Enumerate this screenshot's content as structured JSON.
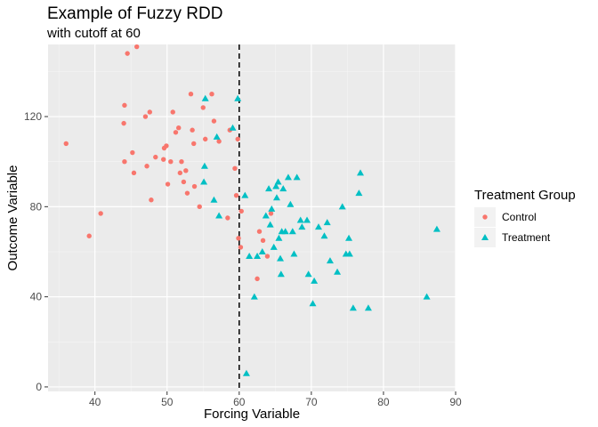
{
  "chart_data": {
    "type": "scatter",
    "title": "Example of Fuzzy RDD",
    "subtitle": "with cutoff at 60",
    "xlabel": "Forcing Variable",
    "ylabel": "Outcome Variable",
    "xlim": [
      33.5,
      90
    ],
    "ylim": [
      -2,
      152
    ],
    "xticks": [
      40,
      50,
      60,
      70,
      80,
      90
    ],
    "yticks": [
      0,
      40,
      80,
      120
    ],
    "grid": true,
    "cutoff": 60,
    "legend": {
      "title": "Treatment Group",
      "placement": "right",
      "entries": [
        "Control",
        "Treatment"
      ]
    },
    "series": [
      {
        "name": "Control",
        "color": "#F8766D",
        "marker": "circle",
        "points": [
          [
            36,
            108
          ],
          [
            39.2,
            67
          ],
          [
            40.8,
            77
          ],
          [
            44.1,
            125
          ],
          [
            44,
            117
          ],
          [
            44.5,
            148
          ],
          [
            45.8,
            151
          ],
          [
            45.2,
            104
          ],
          [
            45.4,
            95
          ],
          [
            44.1,
            100
          ],
          [
            47,
            120
          ],
          [
            47.6,
            122
          ],
          [
            47.2,
            98
          ],
          [
            47.8,
            83
          ],
          [
            48.4,
            102
          ],
          [
            49.5,
            101
          ],
          [
            49.6,
            106
          ],
          [
            49.9,
            107
          ],
          [
            50.1,
            90
          ],
          [
            50.5,
            100
          ],
          [
            50.8,
            122
          ],
          [
            51.2,
            113
          ],
          [
            51.6,
            115
          ],
          [
            51.8,
            95
          ],
          [
            52,
            100
          ],
          [
            52.3,
            91
          ],
          [
            52.6,
            96
          ],
          [
            52.8,
            86
          ],
          [
            53.3,
            130
          ],
          [
            53.5,
            114
          ],
          [
            53.7,
            108
          ],
          [
            53.8,
            89
          ],
          [
            54.5,
            80
          ],
          [
            55,
            124
          ],
          [
            55.3,
            110
          ],
          [
            56.2,
            130
          ],
          [
            56.5,
            118
          ],
          [
            57.2,
            109
          ],
          [
            58.4,
            75
          ],
          [
            58.7,
            114
          ],
          [
            59.4,
            97
          ],
          [
            59.6,
            85
          ],
          [
            59.8,
            110
          ],
          [
            59.9,
            66
          ],
          [
            60.2,
            62
          ],
          [
            60.3,
            78
          ],
          [
            62.5,
            48
          ],
          [
            62.8,
            69
          ],
          [
            63.3,
            65
          ],
          [
            63.9,
            58
          ],
          [
            64.4,
            77
          ]
        ]
      },
      {
        "name": "Treatment",
        "color": "#00BFC4",
        "marker": "triangle",
        "points": [
          [
            55.3,
            128
          ],
          [
            55.2,
            98
          ],
          [
            55.1,
            91
          ],
          [
            56.5,
            83
          ],
          [
            56.9,
            111
          ],
          [
            57.2,
            76
          ],
          [
            59.1,
            115
          ],
          [
            59.8,
            128
          ],
          [
            60.8,
            85
          ],
          [
            61,
            6
          ],
          [
            61.4,
            58
          ],
          [
            62.1,
            40
          ],
          [
            62.5,
            58
          ],
          [
            63.2,
            60
          ],
          [
            63.7,
            76
          ],
          [
            64.1,
            88
          ],
          [
            64.3,
            72
          ],
          [
            64.5,
            79
          ],
          [
            64.8,
            62
          ],
          [
            65.1,
            89
          ],
          [
            65.2,
            84
          ],
          [
            65.4,
            91
          ],
          [
            65.5,
            66
          ],
          [
            65.7,
            57
          ],
          [
            65.8,
            50
          ],
          [
            65.9,
            69
          ],
          [
            66.1,
            88
          ],
          [
            66.4,
            69
          ],
          [
            66.8,
            93
          ],
          [
            67.1,
            81
          ],
          [
            67.4,
            69
          ],
          [
            67.6,
            59
          ],
          [
            68,
            93
          ],
          [
            68.5,
            74
          ],
          [
            68.7,
            71
          ],
          [
            69.4,
            74
          ],
          [
            69.6,
            50
          ],
          [
            70.2,
            37
          ],
          [
            70.4,
            47
          ],
          [
            71,
            71
          ],
          [
            71.8,
            67
          ],
          [
            72.2,
            73
          ],
          [
            72.6,
            56
          ],
          [
            73.6,
            51
          ],
          [
            74.3,
            80
          ],
          [
            74.8,
            59
          ],
          [
            75.2,
            66
          ],
          [
            75.3,
            59
          ],
          [
            75.8,
            35
          ],
          [
            76.6,
            86
          ],
          [
            76.8,
            95
          ],
          [
            77.9,
            35
          ],
          [
            86,
            40
          ],
          [
            87.4,
            70
          ]
        ]
      }
    ]
  }
}
